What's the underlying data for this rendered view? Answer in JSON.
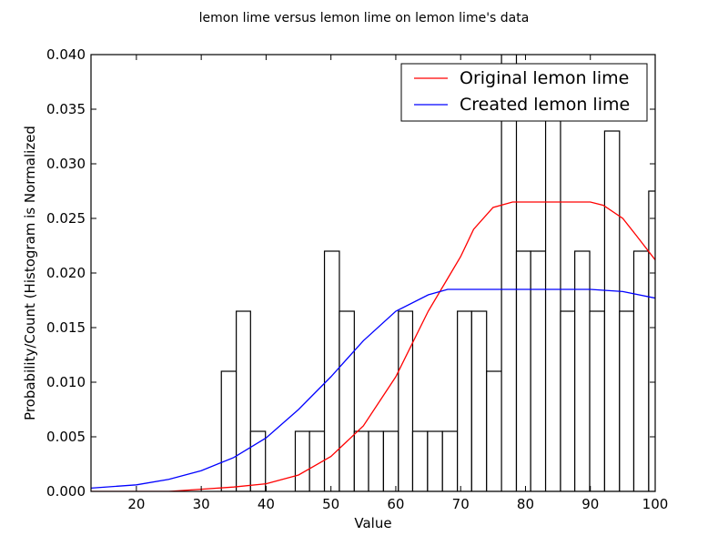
{
  "chart_data": {
    "type": "histogram_with_lines",
    "title": "lemon lime versus lemon lime on lemon lime's data",
    "xlabel": "Value",
    "ylabel": "Probability/Count (Histogram is Normalized",
    "xlim": [
      13,
      100
    ],
    "ylim": [
      0,
      0.04
    ],
    "x_ticks": [
      20,
      30,
      40,
      50,
      60,
      70,
      80,
      90,
      100
    ],
    "y_ticks": [
      "0.000",
      "0.005",
      "0.010",
      "0.015",
      "0.020",
      "0.025",
      "0.030",
      "0.035",
      "0.040"
    ],
    "grid": false,
    "legend_position": "top-right",
    "histogram": {
      "bin_edges": [
        33.1,
        35.4,
        37.6,
        39.9,
        42.2,
        44.5,
        46.7,
        49.0,
        51.3,
        53.6,
        55.8,
        58.1,
        60.4,
        62.6,
        64.9,
        67.2,
        69.5,
        71.7,
        74.0,
        76.3,
        78.6,
        80.8,
        83.1,
        85.4,
        87.6,
        89.9,
        92.2,
        94.5,
        96.7,
        99.0,
        101.3
      ],
      "heights": [
        0.011,
        0.0165,
        0.0055,
        0.0,
        0.0,
        0.0055,
        0.0055,
        0.022,
        0.0165,
        0.0055,
        0.0055,
        0.0055,
        0.0165,
        0.0055,
        0.0055,
        0.0055,
        0.0165,
        0.0165,
        0.011,
        0.044,
        0.022,
        0.022,
        0.0385,
        0.0165,
        0.022,
        0.0165,
        0.033,
        0.0165,
        0.022,
        0.0275
      ],
      "color": "#ffffff",
      "edgecolor": "#000000"
    },
    "series": [
      {
        "name": "Original lemon lime",
        "color": "#ff0000",
        "x": [
          13,
          20,
          25,
          30,
          35,
          40,
          45,
          50,
          55,
          60,
          65,
          68,
          70,
          72,
          75,
          78,
          80,
          85,
          90,
          92,
          95,
          97,
          100
        ],
        "y": [
          0.0,
          0.0,
          0.0,
          0.0002,
          0.0004,
          0.0007,
          0.0015,
          0.0032,
          0.006,
          0.0105,
          0.0165,
          0.0195,
          0.0215,
          0.024,
          0.026,
          0.0265,
          0.0265,
          0.0265,
          0.0265,
          0.0262,
          0.025,
          0.0235,
          0.0212
        ]
      },
      {
        "name": "Created lemon lime",
        "color": "#0000ff",
        "x": [
          13,
          20,
          25,
          30,
          35,
          40,
          45,
          50,
          55,
          60,
          65,
          68,
          70,
          80,
          90,
          95,
          100
        ],
        "y": [
          0.0003,
          0.0006,
          0.0011,
          0.0019,
          0.0031,
          0.0049,
          0.0075,
          0.0105,
          0.0138,
          0.0165,
          0.018,
          0.0185,
          0.0185,
          0.0185,
          0.0185,
          0.0183,
          0.0177
        ]
      }
    ]
  }
}
